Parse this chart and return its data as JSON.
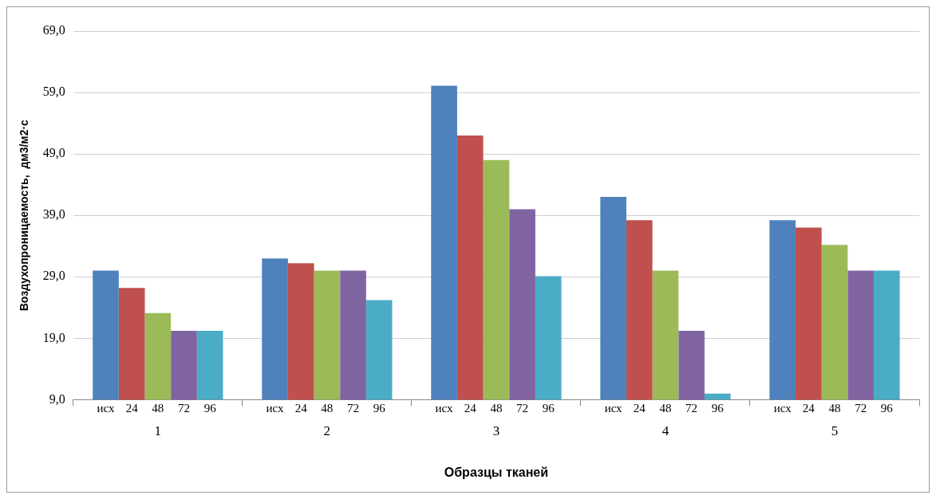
{
  "chart_data": {
    "type": "bar",
    "xlabel": "Образцы тканей",
    "ylabel": "Воздухопроницаемость,  дм3/м2·с",
    "categories": [
      "1",
      "2",
      "3",
      "4",
      "5"
    ],
    "series": [
      {
        "name": "исх",
        "color": "#4f81bd",
        "values": [
          30.0,
          32.0,
          60.1,
          42.0,
          38.2
        ]
      },
      {
        "name": "24",
        "color": "#c0504d",
        "values": [
          27.2,
          31.2,
          52.0,
          38.2,
          37.0
        ]
      },
      {
        "name": "48",
        "color": "#9bbb59",
        "values": [
          23.1,
          30.0,
          48.0,
          30.0,
          34.2
        ]
      },
      {
        "name": "72",
        "color": "#8064a2",
        "values": [
          20.2,
          30.0,
          40.0,
          20.2,
          30.0
        ]
      },
      {
        "name": "96",
        "color": "#4bacc6",
        "values": [
          20.2,
          25.2,
          29.1,
          10.0,
          30.0
        ]
      }
    ],
    "ylim": [
      9,
      69
    ],
    "yticks": [
      {
        "value": 9,
        "label": "9,0"
      },
      {
        "value": 19,
        "label": "19,0"
      },
      {
        "value": 29,
        "label": "29,0"
      },
      {
        "value": 39,
        "label": "39,0"
      },
      {
        "value": 49,
        "label": "49,0"
      },
      {
        "value": 59,
        "label": "59,0"
      },
      {
        "value": 69,
        "label": "69,0"
      }
    ],
    "grid": "y",
    "legend": false
  }
}
